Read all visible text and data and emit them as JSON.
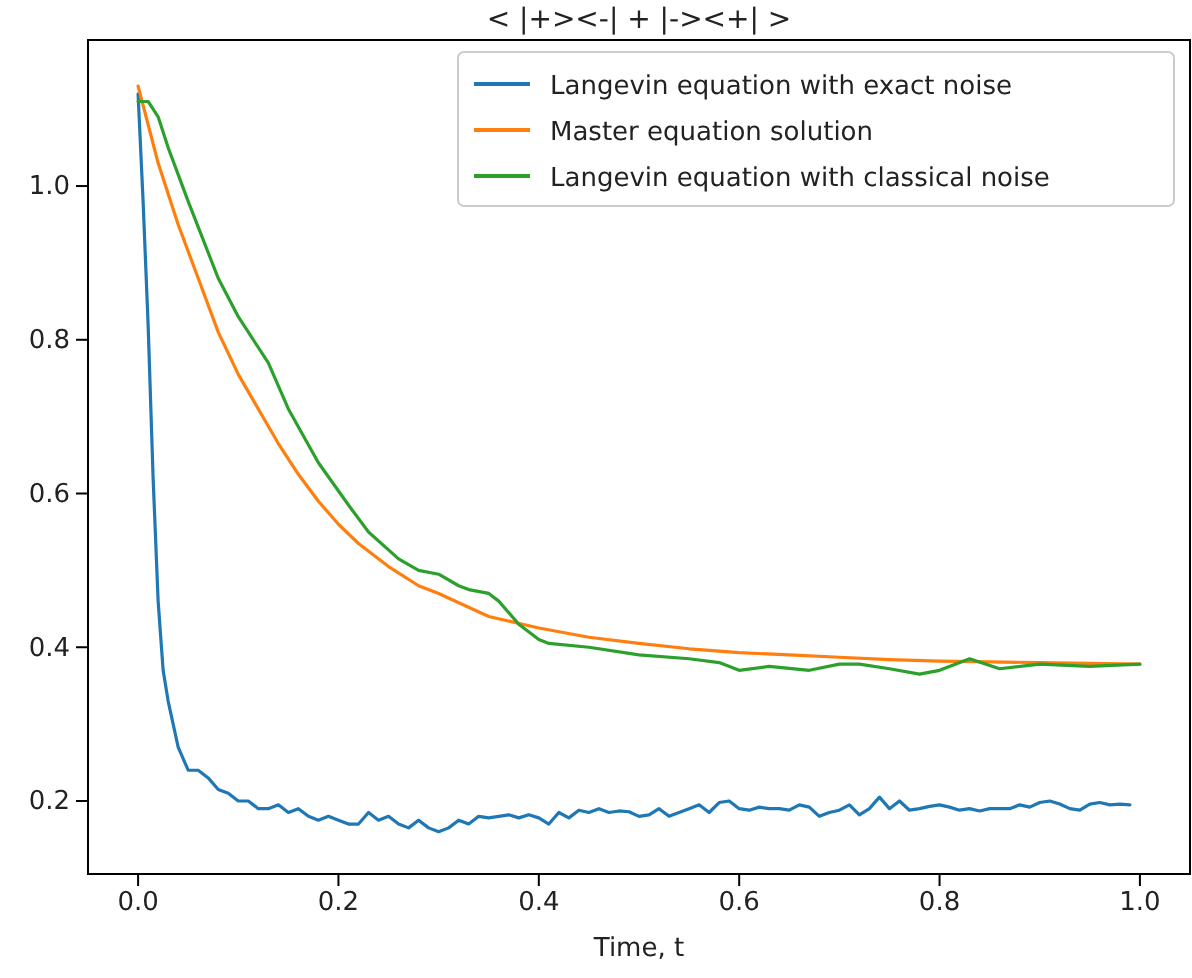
{
  "chart_data": {
    "type": "line",
    "title": "< |+><-| + |-><+| >",
    "xlabel": "Time, t",
    "xlim": [
      -0.05,
      1.05
    ],
    "ylim": [
      0.105,
      1.19
    ],
    "xticks": [
      {
        "value": 0,
        "label": "0.0"
      },
      0.2,
      0.4,
      0.6,
      0.8,
      {
        "value": 1,
        "label": "1.0"
      }
    ],
    "yticks": [
      0.2,
      0.4,
      0.6,
      0.8,
      {
        "value": 1,
        "label": "1.0"
      }
    ],
    "legend": "top right",
    "grid": false,
    "series": [
      {
        "name": "Langevin equation with exact noise",
        "color": "#1f77b4",
        "x": [
          0,
          0.005,
          0.01,
          0.015,
          0.02,
          0.025,
          0.03,
          0.04,
          0.05,
          0.06,
          0.07,
          0.08,
          0.09,
          0.1,
          0.11,
          0.12,
          0.13,
          0.14,
          0.15,
          0.16,
          0.17,
          0.18,
          0.19,
          0.2,
          0.21,
          0.22,
          0.23,
          0.24,
          0.25,
          0.26,
          0.27,
          0.28,
          0.29,
          0.3,
          0.31,
          0.32,
          0.33,
          0.34,
          0.35,
          0.36,
          0.37,
          0.38,
          0.39,
          0.4,
          0.41,
          0.42,
          0.43,
          0.44,
          0.45,
          0.46,
          0.47,
          0.48,
          0.49,
          0.5,
          0.51,
          0.52,
          0.53,
          0.54,
          0.55,
          0.56,
          0.57,
          0.58,
          0.59,
          0.6,
          0.61,
          0.62,
          0.63,
          0.64,
          0.65,
          0.66,
          0.67,
          0.68,
          0.69,
          0.7,
          0.71,
          0.72,
          0.73,
          0.74,
          0.75,
          0.76,
          0.77,
          0.78,
          0.79,
          0.8,
          0.81,
          0.82,
          0.83,
          0.84,
          0.85,
          0.86,
          0.87,
          0.88,
          0.89,
          0.9,
          0.91,
          0.92,
          0.93,
          0.94,
          0.95,
          0.96,
          0.97,
          0.98,
          0.99
        ],
        "values": [
          1.12,
          0.98,
          0.82,
          0.62,
          0.46,
          0.37,
          0.33,
          0.27,
          0.24,
          0.24,
          0.23,
          0.215,
          0.21,
          0.2,
          0.2,
          0.19,
          0.19,
          0.195,
          0.185,
          0.19,
          0.18,
          0.175,
          0.18,
          0.175,
          0.17,
          0.17,
          0.185,
          0.175,
          0.18,
          0.17,
          0.165,
          0.175,
          0.165,
          0.16,
          0.165,
          0.175,
          0.17,
          0.18,
          0.178,
          0.18,
          0.182,
          0.178,
          0.182,
          0.178,
          0.17,
          0.185,
          0.178,
          0.188,
          0.185,
          0.19,
          0.185,
          0.187,
          0.186,
          0.18,
          0.182,
          0.19,
          0.18,
          0.185,
          0.19,
          0.195,
          0.185,
          0.198,
          0.2,
          0.19,
          0.188,
          0.192,
          0.19,
          0.19,
          0.188,
          0.195,
          0.192,
          0.18,
          0.185,
          0.188,
          0.195,
          0.182,
          0.19,
          0.205,
          0.19,
          0.2,
          0.188,
          0.19,
          0.193,
          0.195,
          0.192,
          0.188,
          0.19,
          0.187,
          0.19,
          0.19,
          0.19,
          0.195,
          0.192,
          0.198,
          0.2,
          0.196,
          0.19,
          0.188,
          0.196,
          0.198,
          0.195,
          0.196,
          0.195
        ]
      },
      {
        "name": "Master equation solution",
        "color": "#ff7f0e",
        "x": [
          0,
          0.02,
          0.04,
          0.06,
          0.08,
          0.1,
          0.12,
          0.14,
          0.16,
          0.18,
          0.2,
          0.22,
          0.25,
          0.28,
          0.3,
          0.35,
          0.4,
          0.45,
          0.5,
          0.55,
          0.6,
          0.65,
          0.7,
          0.75,
          0.8,
          0.85,
          0.9,
          0.95,
          1.0
        ],
        "values": [
          1.13,
          1.03,
          0.95,
          0.88,
          0.81,
          0.755,
          0.71,
          0.665,
          0.625,
          0.59,
          0.56,
          0.535,
          0.505,
          0.48,
          0.47,
          0.44,
          0.425,
          0.413,
          0.405,
          0.398,
          0.393,
          0.39,
          0.387,
          0.384,
          0.382,
          0.381,
          0.38,
          0.379,
          0.378
        ]
      },
      {
        "name": "Langevin equation with classical noise",
        "color": "#2ca02c",
        "x": [
          0,
          0.01,
          0.02,
          0.03,
          0.05,
          0.08,
          0.1,
          0.13,
          0.15,
          0.18,
          0.21,
          0.23,
          0.26,
          0.28,
          0.3,
          0.32,
          0.33,
          0.35,
          0.36,
          0.38,
          0.4,
          0.41,
          0.45,
          0.5,
          0.55,
          0.58,
          0.6,
          0.63,
          0.67,
          0.7,
          0.72,
          0.75,
          0.78,
          0.8,
          0.83,
          0.86,
          0.9,
          0.95,
          1.0
        ],
        "values": [
          1.11,
          1.11,
          1.09,
          1.05,
          0.98,
          0.88,
          0.83,
          0.77,
          0.71,
          0.64,
          0.585,
          0.55,
          0.515,
          0.5,
          0.495,
          0.48,
          0.475,
          0.47,
          0.46,
          0.43,
          0.41,
          0.405,
          0.4,
          0.39,
          0.385,
          0.38,
          0.37,
          0.375,
          0.37,
          0.378,
          0.378,
          0.372,
          0.365,
          0.37,
          0.385,
          0.372,
          0.378,
          0.375,
          0.378
        ]
      }
    ]
  }
}
